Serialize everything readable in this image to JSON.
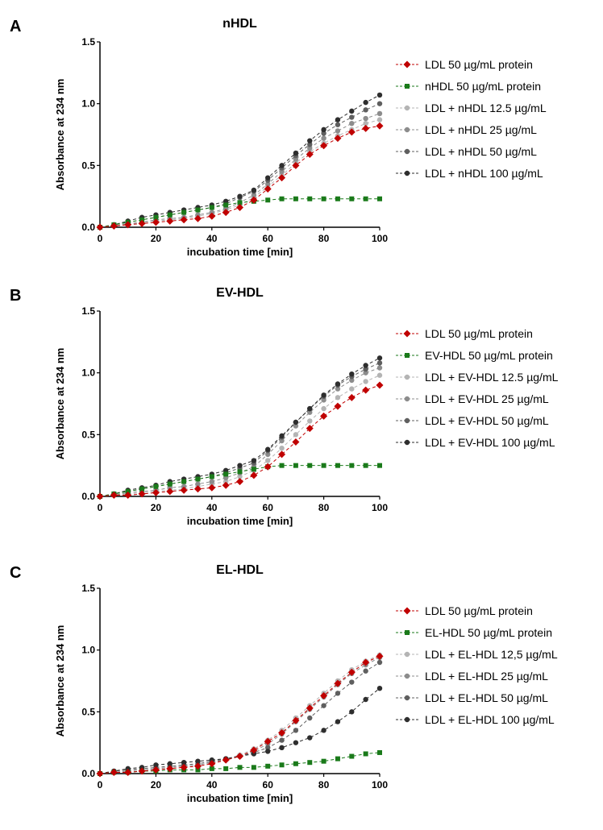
{
  "chart_data": [
    {
      "panel_label": "A",
      "type": "line",
      "title": "nHDL",
      "xlabel": "incubation time [min]",
      "ylabel": "Absorbance at 234 nm",
      "xlim": [
        0,
        100
      ],
      "ylim": [
        0,
        1.5
      ],
      "xticks": [
        "0",
        "20",
        "40",
        "60",
        "80",
        "100"
      ],
      "yticks": [
        "0.0",
        "0.5",
        "1.0",
        "1.5"
      ],
      "x": [
        0,
        5,
        10,
        15,
        20,
        25,
        30,
        35,
        40,
        45,
        50,
        55,
        60,
        65,
        70,
        75,
        80,
        85,
        90,
        95,
        100
      ],
      "legend_position": "right",
      "series": [
        {
          "name": "LDL 50 µg/mL protein",
          "color": "#c00000",
          "marker": "diamond",
          "values": [
            0,
            0.01,
            0.02,
            0.03,
            0.04,
            0.05,
            0.06,
            0.07,
            0.09,
            0.12,
            0.16,
            0.22,
            0.31,
            0.4,
            0.5,
            0.59,
            0.66,
            0.72,
            0.77,
            0.8,
            0.82
          ]
        },
        {
          "name": "nHDL 50 µg/mL protein",
          "color": "#1a7a1a",
          "marker": "square",
          "values": [
            0,
            0.02,
            0.04,
            0.06,
            0.08,
            0.1,
            0.12,
            0.14,
            0.16,
            0.18,
            0.2,
            0.21,
            0.22,
            0.23,
            0.23,
            0.23,
            0.23,
            0.23,
            0.23,
            0.23,
            0.23
          ]
        },
        {
          "name": "LDL + nHDL 12.5 µg/mL",
          "color": "#b4b4b4",
          "marker": "circle",
          "values": [
            0,
            0.01,
            0.02,
            0.04,
            0.05,
            0.06,
            0.07,
            0.09,
            0.11,
            0.14,
            0.18,
            0.24,
            0.33,
            0.42,
            0.52,
            0.61,
            0.68,
            0.74,
            0.79,
            0.84,
            0.87
          ]
        },
        {
          "name": "LDL + nHDL 25 µg/mL",
          "color": "#8c8c8c",
          "marker": "circle",
          "values": [
            0,
            0.01,
            0.03,
            0.04,
            0.06,
            0.07,
            0.08,
            0.1,
            0.12,
            0.15,
            0.2,
            0.26,
            0.35,
            0.45,
            0.55,
            0.64,
            0.72,
            0.78,
            0.84,
            0.88,
            0.92
          ]
        },
        {
          "name": "LDL + nHDL 50 µg/mL",
          "color": "#5f5f5f",
          "marker": "circle",
          "values": [
            0,
            0.02,
            0.04,
            0.06,
            0.08,
            0.1,
            0.12,
            0.14,
            0.16,
            0.19,
            0.24,
            0.29,
            0.38,
            0.48,
            0.58,
            0.67,
            0.76,
            0.83,
            0.89,
            0.95,
            1.0
          ]
        },
        {
          "name": "LDL + nHDL 100 µg/mL",
          "color": "#2e2e2e",
          "marker": "circle",
          "values": [
            0,
            0.02,
            0.05,
            0.08,
            0.1,
            0.12,
            0.14,
            0.16,
            0.18,
            0.21,
            0.25,
            0.3,
            0.4,
            0.5,
            0.6,
            0.7,
            0.79,
            0.87,
            0.94,
            1.01,
            1.07
          ]
        }
      ]
    },
    {
      "panel_label": "B",
      "type": "line",
      "title": "EV-HDL",
      "xlabel": "incubation time [min]",
      "ylabel": "Absorbance at 234 nm",
      "xlim": [
        0,
        100
      ],
      "ylim": [
        0,
        1.5
      ],
      "xticks": [
        "0",
        "20",
        "40",
        "60",
        "80",
        "100"
      ],
      "yticks": [
        "0.0",
        "0.5",
        "1.0",
        "1.5"
      ],
      "x": [
        0,
        5,
        10,
        15,
        20,
        25,
        30,
        35,
        40,
        45,
        50,
        55,
        60,
        65,
        70,
        75,
        80,
        85,
        90,
        95,
        100
      ],
      "legend_position": "right",
      "series": [
        {
          "name": "LDL 50 µg/mL protein",
          "color": "#c00000",
          "marker": "diamond",
          "values": [
            0,
            0.01,
            0.01,
            0.02,
            0.03,
            0.04,
            0.05,
            0.06,
            0.07,
            0.09,
            0.12,
            0.17,
            0.24,
            0.34,
            0.44,
            0.55,
            0.65,
            0.73,
            0.8,
            0.86,
            0.9
          ]
        },
        {
          "name": "EV-HDL 50 µg/mL protein",
          "color": "#1a7a1a",
          "marker": "square",
          "values": [
            0,
            0.02,
            0.04,
            0.06,
            0.08,
            0.1,
            0.12,
            0.14,
            0.16,
            0.18,
            0.2,
            0.22,
            0.24,
            0.25,
            0.25,
            0.25,
            0.25,
            0.25,
            0.25,
            0.25,
            0.25
          ]
        },
        {
          "name": "LDL + EV-HDL 12.5 µg/mL",
          "color": "#b4b4b4",
          "marker": "circle",
          "values": [
            0,
            0.01,
            0.02,
            0.03,
            0.04,
            0.05,
            0.06,
            0.08,
            0.1,
            0.12,
            0.16,
            0.21,
            0.29,
            0.39,
            0.5,
            0.61,
            0.71,
            0.8,
            0.87,
            0.93,
            0.98
          ]
        },
        {
          "name": "LDL + EV-HDL 25 µg/mL",
          "color": "#8c8c8c",
          "marker": "circle",
          "values": [
            0,
            0.01,
            0.03,
            0.04,
            0.05,
            0.07,
            0.08,
            0.1,
            0.12,
            0.15,
            0.19,
            0.24,
            0.34,
            0.45,
            0.57,
            0.68,
            0.78,
            0.87,
            0.94,
            1.0,
            1.04
          ]
        },
        {
          "name": "LDL + EV-HDL 50 µg/mL",
          "color": "#5f5f5f",
          "marker": "circle",
          "values": [
            0,
            0.02,
            0.04,
            0.06,
            0.08,
            0.1,
            0.12,
            0.14,
            0.16,
            0.19,
            0.23,
            0.27,
            0.37,
            0.48,
            0.6,
            0.71,
            0.81,
            0.9,
            0.97,
            1.03,
            1.08
          ]
        },
        {
          "name": "LDL + EV-HDL 100 µg/mL",
          "color": "#2e2e2e",
          "marker": "circle",
          "values": [
            0,
            0.02,
            0.05,
            0.07,
            0.09,
            0.12,
            0.14,
            0.16,
            0.18,
            0.21,
            0.25,
            0.29,
            0.38,
            0.49,
            0.6,
            0.71,
            0.82,
            0.91,
            0.99,
            1.06,
            1.12
          ]
        }
      ]
    },
    {
      "panel_label": "C",
      "type": "line",
      "title": "EL-HDL",
      "xlabel": "incubation time [min]",
      "ylabel": "Absorbance at 234 nm",
      "xlim": [
        0,
        100
      ],
      "ylim": [
        0,
        1.5
      ],
      "xticks": [
        "0",
        "20",
        "40",
        "60",
        "80",
        "100"
      ],
      "yticks": [
        "0.0",
        "0.5",
        "1.0",
        "1.5"
      ],
      "x": [
        0,
        5,
        10,
        15,
        20,
        25,
        30,
        35,
        40,
        45,
        50,
        55,
        60,
        65,
        70,
        75,
        80,
        85,
        90,
        95,
        100
      ],
      "legend_position": "right",
      "series": [
        {
          "name": "LDL 50 µg/mL protein",
          "color": "#c00000",
          "marker": "diamond",
          "values": [
            0,
            0.01,
            0.01,
            0.02,
            0.03,
            0.04,
            0.05,
            0.06,
            0.08,
            0.11,
            0.14,
            0.19,
            0.26,
            0.33,
            0.43,
            0.53,
            0.63,
            0.73,
            0.82,
            0.9,
            0.95
          ]
        },
        {
          "name": "EL-HDL 50 µg/mL protein",
          "color": "#1a7a1a",
          "marker": "square",
          "values": [
            0,
            0.01,
            0.01,
            0.02,
            0.02,
            0.03,
            0.03,
            0.03,
            0.04,
            0.04,
            0.05,
            0.05,
            0.06,
            0.07,
            0.08,
            0.09,
            0.1,
            0.12,
            0.14,
            0.16,
            0.17
          ]
        },
        {
          "name": "LDL + EL-HDL 12,5 µg/mL",
          "color": "#b4b4b4",
          "marker": "circle",
          "values": [
            0,
            0.01,
            0.02,
            0.03,
            0.04,
            0.05,
            0.06,
            0.07,
            0.09,
            0.12,
            0.15,
            0.2,
            0.27,
            0.35,
            0.45,
            0.55,
            0.65,
            0.75,
            0.84,
            0.91,
            0.96
          ]
        },
        {
          "name": "LDL + EL-HDL 25 µg/mL",
          "color": "#8c8c8c",
          "marker": "circle",
          "values": [
            0,
            0.01,
            0.02,
            0.03,
            0.04,
            0.05,
            0.06,
            0.07,
            0.09,
            0.11,
            0.14,
            0.18,
            0.24,
            0.32,
            0.42,
            0.52,
            0.62,
            0.72,
            0.81,
            0.88,
            0.94
          ]
        },
        {
          "name": "LDL + EL-HDL 50 µg/mL",
          "color": "#5f5f5f",
          "marker": "circle",
          "values": [
            0,
            0.02,
            0.03,
            0.04,
            0.05,
            0.06,
            0.07,
            0.08,
            0.1,
            0.12,
            0.14,
            0.17,
            0.21,
            0.27,
            0.35,
            0.45,
            0.55,
            0.65,
            0.74,
            0.83,
            0.9
          ]
        },
        {
          "name": "LDL + EL-HDL 100 µg/mL",
          "color": "#2e2e2e",
          "marker": "circle",
          "values": [
            0,
            0.02,
            0.04,
            0.05,
            0.07,
            0.08,
            0.09,
            0.1,
            0.11,
            0.12,
            0.14,
            0.16,
            0.18,
            0.21,
            0.25,
            0.29,
            0.35,
            0.42,
            0.5,
            0.6,
            0.69
          ]
        }
      ]
    }
  ]
}
